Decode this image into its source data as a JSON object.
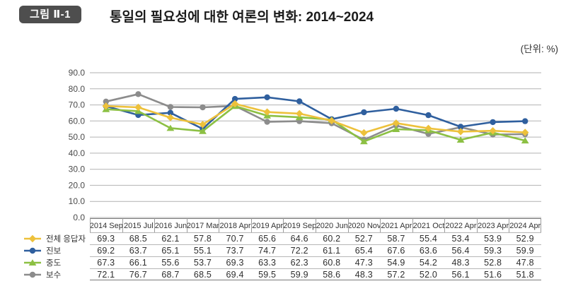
{
  "header": {
    "figure_label": "그림 Ⅱ-1",
    "title": "통일의 필요성에 대한 여론의 변화: 2014~2024",
    "unit_note": "(단위:  %)"
  },
  "chart_data": {
    "type": "line",
    "categories": [
      "2014 Sep",
      "2015 Jul",
      "2016 Jun",
      "2017 Mar",
      "2018 Apr",
      "2019 Apr",
      "2019 Sep",
      "2020 Jun",
      "2020 Nov",
      "2021 Apr",
      "2021 Oct",
      "2022 Apr",
      "2023 Apr",
      "2024 Apr"
    ],
    "series": [
      {
        "name": "전체 응답자",
        "marker": "diamond",
        "color": "#EDC13B",
        "values": [
          69.3,
          68.5,
          62.1,
          57.8,
          70.7,
          65.6,
          64.6,
          60.2,
          52.7,
          58.7,
          55.4,
          53.4,
          53.9,
          52.9
        ]
      },
      {
        "name": "진보",
        "marker": "circle",
        "color": "#2F5F9E",
        "values": [
          69.2,
          63.7,
          65.1,
          55.1,
          73.7,
          74.7,
          72.2,
          61.1,
          65.4,
          67.6,
          63.6,
          56.4,
          59.3,
          59.9
        ]
      },
      {
        "name": "중도",
        "marker": "triangle",
        "color": "#8CC043",
        "values": [
          67.3,
          66.1,
          55.6,
          53.7,
          69.3,
          63.3,
          62.3,
          60.8,
          47.3,
          54.9,
          54.2,
          48.3,
          52.8,
          47.8
        ]
      },
      {
        "name": "보수",
        "marker": "circle",
        "color": "#8C8C8C",
        "values": [
          72.1,
          76.7,
          68.7,
          68.5,
          69.4,
          59.5,
          59.9,
          58.6,
          48.3,
          57.2,
          52.0,
          56.1,
          51.6,
          51.8
        ]
      }
    ],
    "ylim": [
      0,
      90
    ],
    "y_tick_labels": [
      "0.0",
      "10.0",
      "20.0",
      "30.0",
      "40.0",
      "50.0",
      "60.0",
      "70.0",
      "80.0",
      "90.0"
    ],
    "grid": "horizontal",
    "draw_order": [
      "보수",
      "진보",
      "중도",
      "전체 응답자"
    ],
    "legend_position": "left-of-table"
  },
  "colors": {
    "badge_bg": "#4E4E4E",
    "gridline": "#B2B2B2",
    "axis_label": "#4A4A4A",
    "table_border_dark": "#7A7A7A",
    "table_border_light": "#B6B6B6"
  }
}
